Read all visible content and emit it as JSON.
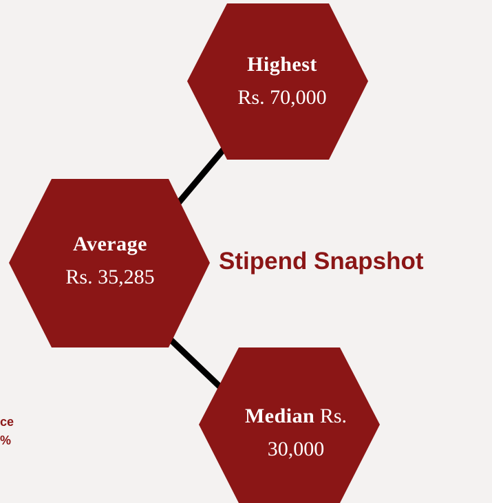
{
  "title": "Stipend Snapshot",
  "nodes": [
    {
      "label": "Highest",
      "value": "Rs. 70,000"
    },
    {
      "label": "Average",
      "value": "Rs. 35,285"
    },
    {
      "label": "Median",
      "value": "Rs. 30,000"
    }
  ],
  "fragments": [
    "ce",
    "%"
  ]
}
